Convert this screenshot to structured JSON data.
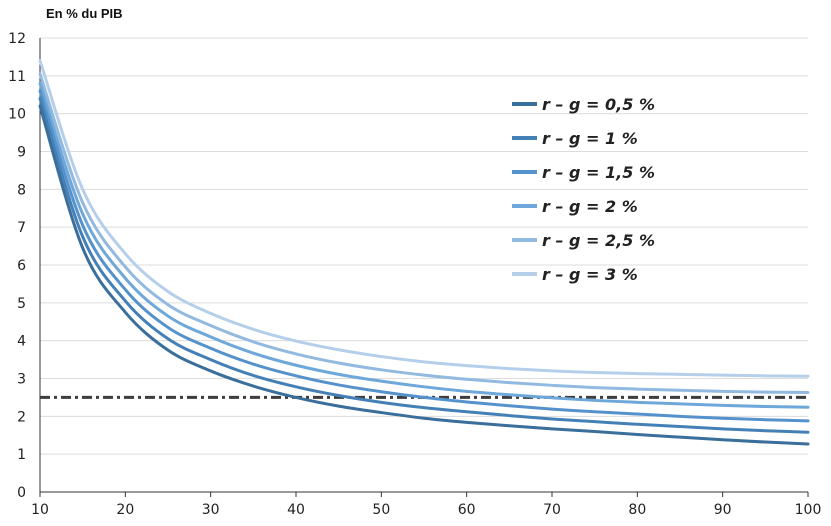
{
  "chart_data": {
    "type": "line",
    "unit_label": "En % du PIB",
    "xlim": [
      10,
      100
    ],
    "ylim": [
      0,
      12
    ],
    "x_ticks": [
      10,
      20,
      30,
      40,
      50,
      60,
      70,
      80,
      90,
      100
    ],
    "y_ticks": [
      0,
      1,
      2,
      3,
      4,
      5,
      6,
      7,
      8,
      9,
      10,
      11,
      12
    ],
    "grid": "horizontal",
    "legend_position": "top-right",
    "x": [
      10,
      15,
      20,
      25,
      30,
      35,
      40,
      45,
      50,
      55,
      60,
      65,
      70,
      75,
      80,
      85,
      90,
      95,
      100
    ],
    "series": [
      {
        "name": "r – g = 0,5 %",
        "color": "#3a6e9b",
        "values": [
          10.2,
          6.45,
          4.75,
          3.75,
          3.2,
          2.8,
          2.5,
          2.27,
          2.1,
          1.95,
          1.84,
          1.75,
          1.67,
          1.6,
          1.52,
          1.45,
          1.38,
          1.32,
          1.27
        ]
      },
      {
        "name": "r – g = 1 %",
        "color": "#4480b6",
        "values": [
          10.4,
          6.75,
          5.05,
          4.05,
          3.5,
          3.08,
          2.78,
          2.55,
          2.37,
          2.23,
          2.12,
          2.02,
          1.93,
          1.86,
          1.79,
          1.73,
          1.67,
          1.62,
          1.58
        ]
      },
      {
        "name": "r – g = 1,5 %",
        "color": "#5592cc",
        "values": [
          10.6,
          7.05,
          5.35,
          4.35,
          3.8,
          3.38,
          3.07,
          2.83,
          2.65,
          2.5,
          2.38,
          2.28,
          2.19,
          2.12,
          2.06,
          2.0,
          1.95,
          1.91,
          1.88
        ]
      },
      {
        "name": "r – g = 2 %",
        "color": "#6ea7d9",
        "values": [
          10.8,
          7.35,
          5.65,
          4.65,
          4.1,
          3.67,
          3.35,
          3.11,
          2.93,
          2.78,
          2.66,
          2.57,
          2.49,
          2.42,
          2.37,
          2.33,
          2.29,
          2.26,
          2.24
        ]
      },
      {
        "name": "r – g = 2,5 %",
        "color": "#92b9df",
        "values": [
          11.05,
          7.65,
          5.95,
          4.95,
          4.4,
          3.97,
          3.65,
          3.41,
          3.23,
          3.09,
          2.98,
          2.89,
          2.82,
          2.76,
          2.72,
          2.69,
          2.66,
          2.64,
          2.63
        ]
      },
      {
        "name": "r – g = 3 %",
        "color": "#b5cfea",
        "values": [
          11.4,
          8.0,
          6.3,
          5.3,
          4.72,
          4.3,
          3.99,
          3.76,
          3.58,
          3.44,
          3.34,
          3.26,
          3.2,
          3.16,
          3.13,
          3.11,
          3.09,
          3.07,
          3.06
        ]
      }
    ],
    "reference_line": {
      "value": 2.5,
      "color": "#3d3d3d",
      "style": "dash-dot"
    }
  }
}
